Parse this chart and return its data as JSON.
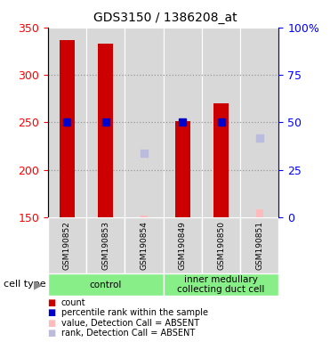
{
  "title": "GDS3150 / 1386208_at",
  "samples": [
    "GSM190852",
    "GSM190853",
    "GSM190854",
    "GSM190849",
    "GSM190850",
    "GSM190851"
  ],
  "count_values": [
    337,
    333,
    null,
    251,
    270,
    null
  ],
  "count_base": 150,
  "percentile_y_values": [
    250,
    250,
    null,
    250,
    250,
    null
  ],
  "absent_value_y": [
    null,
    null,
    152,
    null,
    null,
    158
  ],
  "absent_rank_y": [
    null,
    null,
    217,
    null,
    null,
    233
  ],
  "ylim_left": [
    150,
    350
  ],
  "ylim_right": [
    0,
    100
  ],
  "yticks_left": [
    150,
    200,
    250,
    300,
    350
  ],
  "yticks_right": [
    0,
    25,
    50,
    75,
    100
  ],
  "ytick_labels_right": [
    "0",
    "25",
    "50",
    "75",
    "100%"
  ],
  "bar_color": "#cc0000",
  "bar_width": 0.38,
  "percentile_color": "#0000cc",
  "absent_value_color": "#ffbbbb",
  "absent_rank_color": "#bbbbdd",
  "grid_color": "#999999",
  "bg_color": "#d8d8d8",
  "group_color": "#88ee88",
  "legend_items": [
    {
      "color": "#cc0000",
      "label": "count"
    },
    {
      "color": "#0000cc",
      "label": "percentile rank within the sample"
    },
    {
      "color": "#ffbbbb",
      "label": "value, Detection Call = ABSENT"
    },
    {
      "color": "#bbbbdd",
      "label": "rank, Detection Call = ABSENT"
    }
  ]
}
